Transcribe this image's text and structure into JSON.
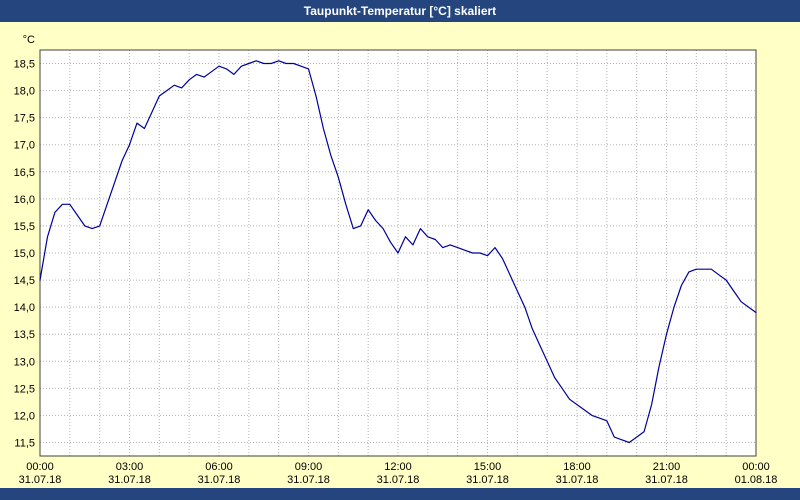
{
  "title": "Taupunkt-Temperatur [°C] skaliert",
  "colors": {
    "titlebar": "#24457E",
    "page_background": "#FFFFC6",
    "plot_background": "#FFFFFF",
    "grid": "#B4B4B4",
    "plot_border": "#404040",
    "line": "#000099"
  },
  "chart_data": {
    "type": "line",
    "title": "Taupunkt-Temperatur [°C] skaliert",
    "xlabel": "",
    "ylabel": "°C",
    "unit_label": "°C",
    "ylim": [
      11.25,
      18.75
    ],
    "xlim_hours": [
      0,
      24
    ],
    "grid": "dotted, vertical every hour, horizontal every 0.5 °C",
    "legend": "none",
    "y_ticks": [
      "18,5",
      "18,0",
      "17,5",
      "17,0",
      "16,5",
      "16,0",
      "15,5",
      "15,0",
      "14,5",
      "14,0",
      "13,5",
      "13,0",
      "12,5",
      "12,0",
      "11,5"
    ],
    "y_tick_values": [
      18.5,
      18.0,
      17.5,
      17.0,
      16.5,
      16.0,
      15.5,
      15.0,
      14.5,
      14.0,
      13.5,
      13.0,
      12.5,
      12.0,
      11.5
    ],
    "x_tick_hours": [
      0,
      3,
      6,
      9,
      12,
      15,
      18,
      21,
      24
    ],
    "x_ticks": [
      {
        "time": "00:00",
        "date": "31.07.18"
      },
      {
        "time": "03:00",
        "date": "31.07.18"
      },
      {
        "time": "06:00",
        "date": "31.07.18"
      },
      {
        "time": "09:00",
        "date": "31.07.18"
      },
      {
        "time": "12:00",
        "date": "31.07.18"
      },
      {
        "time": "15:00",
        "date": "31.07.18"
      },
      {
        "time": "18:00",
        "date": "31.07.18"
      },
      {
        "time": "21:00",
        "date": "31.07.18"
      },
      {
        "time": "00:00",
        "date": "01.08.18"
      }
    ],
    "x_hours_start": 0,
    "x_hours_step": 0.25,
    "series_name": "Taupunkt-Temperatur",
    "values": [
      14.5,
      15.3,
      15.75,
      15.9,
      15.9,
      15.7,
      15.5,
      15.45,
      15.5,
      15.9,
      16.3,
      16.7,
      17.0,
      17.4,
      17.3,
      17.6,
      17.9,
      18.0,
      18.1,
      18.05,
      18.2,
      18.3,
      18.25,
      18.35,
      18.45,
      18.4,
      18.3,
      18.45,
      18.5,
      18.55,
      18.5,
      18.5,
      18.55,
      18.5,
      18.5,
      18.45,
      18.4,
      17.9,
      17.3,
      16.8,
      16.4,
      15.9,
      15.45,
      15.5,
      15.8,
      15.6,
      15.45,
      15.2,
      15.0,
      15.3,
      15.15,
      15.45,
      15.3,
      15.25,
      15.1,
      15.15,
      15.1,
      15.05,
      15.0,
      15.0,
      14.95,
      15.1,
      14.9,
      14.6,
      14.3,
      14.0,
      13.6,
      13.3,
      13.0,
      12.7,
      12.5,
      12.3,
      12.2,
      12.1,
      12.0,
      11.95,
      11.9,
      11.6,
      11.55,
      11.5,
      11.6,
      11.7,
      12.2,
      12.9,
      13.5,
      14.0,
      14.4,
      14.65,
      14.7,
      14.7,
      14.7,
      14.6,
      14.5,
      14.3,
      14.1,
      14.0,
      13.9
    ]
  }
}
